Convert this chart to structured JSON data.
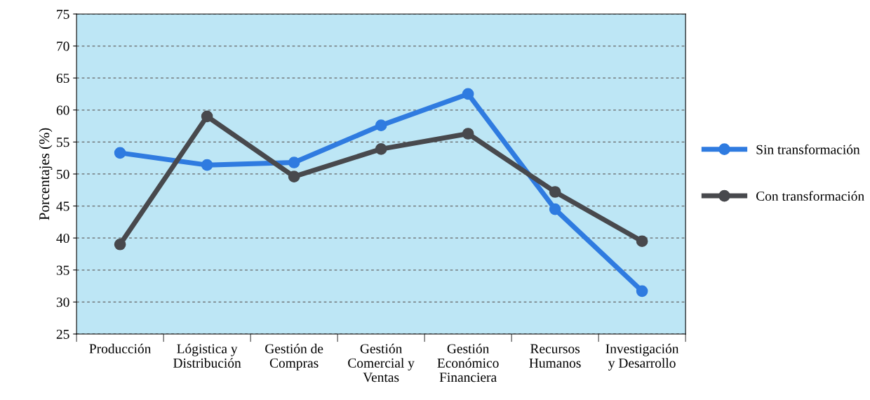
{
  "chart_data": {
    "type": "line",
    "ylabel": "Porcentajes (%)",
    "categories": [
      "Producción",
      "Lógistica y\nDistribución",
      "Gestión de\nCompras",
      "Gestión\nComercial y\nVentas",
      "Gestión\nEconómico\nFinanciera",
      "Recursos\nHumanos",
      "Investigación\ny Desarrollo"
    ],
    "series": [
      {
        "name": "Sin transformación",
        "color": "#2f7be0",
        "values": [
          53.3,
          51.4,
          51.8,
          57.6,
          62.5,
          44.5,
          31.7
        ]
      },
      {
        "name": "Con transformación",
        "color": "#48494d",
        "values": [
          39.0,
          59.0,
          49.6,
          53.9,
          56.3,
          47.2,
          39.5
        ]
      }
    ],
    "ylim": [
      25,
      75
    ],
    "yticks": [
      25,
      30,
      35,
      40,
      45,
      50,
      55,
      60,
      65,
      70,
      75
    ],
    "grid": "y",
    "legend": "right",
    "marker": "circle",
    "line_style": "solid"
  }
}
